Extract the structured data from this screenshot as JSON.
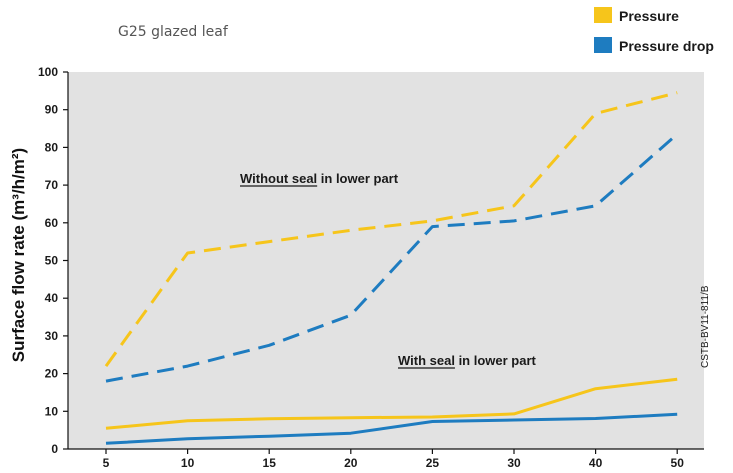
{
  "chart_data": {
    "type": "line",
    "title": "G25 glazed leaf",
    "ylabel": "Surface flow rate (m³/h/m²)",
    "xlabel": "",
    "categories": [
      "5",
      "10",
      "15",
      "20",
      "25",
      "30",
      "40",
      "50"
    ],
    "ylim": [
      0,
      100
    ],
    "yticks": [
      "0",
      "10",
      "20",
      "30",
      "40",
      "50",
      "60",
      "70",
      "80",
      "90",
      "100"
    ],
    "grid": false,
    "legend": [
      {
        "label": "Pressure",
        "color": "#f6c51b"
      },
      {
        "label": "Pressure drop",
        "color": "#1e7cc0"
      }
    ],
    "annotations": {
      "without_seal_underlined": "Without seal",
      "without_seal_rest": " in lower part",
      "with_seal_underlined": "With seal",
      "with_seal_rest": " in lower part",
      "reference": "CSTB-BV11-811/B"
    },
    "series": [
      {
        "legend": "Pressure",
        "group": "without seal",
        "style": "dashed",
        "color": "#f6c51b",
        "values": [
          22,
          52,
          55,
          58,
          60.5,
          64.5,
          89,
          94.5
        ]
      },
      {
        "legend": "Pressure drop",
        "group": "without seal",
        "style": "dashed",
        "color": "#1e7cc0",
        "values": [
          18,
          22,
          27.5,
          35.5,
          59,
          60.5,
          64.5,
          83.5
        ]
      },
      {
        "legend": "Pressure",
        "group": "with seal",
        "style": "solid",
        "color": "#f6c51b",
        "values": [
          5.5,
          7.5,
          8,
          8.3,
          8.5,
          9.3,
          16,
          18.5
        ]
      },
      {
        "legend": "Pressure drop",
        "group": "with seal",
        "style": "solid",
        "color": "#1e7cc0",
        "values": [
          1.5,
          2.7,
          3.4,
          4.2,
          7.3,
          7.7,
          8.1,
          9.2
        ]
      }
    ]
  }
}
